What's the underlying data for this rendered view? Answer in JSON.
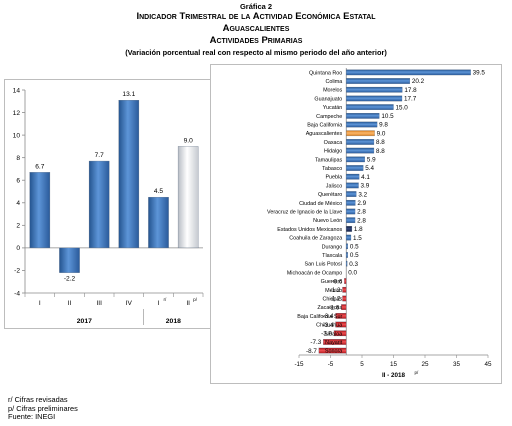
{
  "header": {
    "label": "Gráfica 2",
    "title": "Indicador Trimestral de la Actividad Económica Estatal",
    "state": "Aguascalientes",
    "sector": "Actividades Primarias",
    "subtitle": "(Variación porcentual real con respecto al mismo periodo del año anterior)"
  },
  "colors": {
    "bar_blue": "#3f74bd",
    "bar_white": "#dfe3e8",
    "bar_orange": "#f39c35",
    "bar_red": "#d7262a",
    "bar_navy": "#1d2c55"
  },
  "chart_data": [
    {
      "type": "bar",
      "orientation": "vertical",
      "categories": [
        "I",
        "II",
        "III",
        "IV",
        "I r/",
        "II p/"
      ],
      "category_tick_labels": [
        "I",
        "II",
        "III",
        "IV",
        "I",
        "II"
      ],
      "category_superscripts": [
        "",
        "",
        "",
        "",
        "r/",
        "p/"
      ],
      "values": [
        6.7,
        -2.2,
        7.7,
        13.1,
        4.5,
        9.0
      ],
      "value_labels": [
        "6.7",
        "-2.2",
        "7.7",
        "13.1",
        "4.5",
        "9.0"
      ],
      "bar_colors": [
        "blue",
        "blue",
        "blue",
        "blue",
        "blue",
        "white"
      ],
      "groups": [
        {
          "label": "2017",
          "first": 0,
          "last": 3
        },
        {
          "label": "2018",
          "first": 4,
          "last": 5
        }
      ],
      "ylim": [
        -4,
        14
      ],
      "yticks": [
        -4,
        -2,
        0,
        2,
        4,
        6,
        8,
        10,
        12,
        14
      ],
      "ytick_labels": [
        "-4",
        "-2",
        "0",
        "2",
        "4",
        "6",
        "8",
        "10",
        "12",
        "14"
      ],
      "grid": false
    },
    {
      "type": "bar",
      "orientation": "horizontal",
      "categories": [
        "Quintana Roo",
        "Colima",
        "Morelos",
        "Guanajuato",
        "Yucatán",
        "Campeche",
        "Baja California",
        "Aguascalientes",
        "Oaxaca",
        "Hidalgo",
        "Tamaulipas",
        "Tabasco",
        "Puebla",
        "Jalisco",
        "Querétaro",
        "Ciudad de México",
        "Veracruz de Ignacio de la Llave",
        "Nuevo León",
        "Estados Unidos Mexicanos",
        "Coahuila de Zaragoza",
        "Durango",
        "Tlaxcala",
        "San Luis Potosí",
        "Michoacán de Ocampo",
        "Guerrero",
        "México",
        "Chiapas",
        "Zacatecas",
        "Baja California Sur",
        "Chihuahua",
        "Sinaloa",
        "Nayarit",
        "Sonora"
      ],
      "values": [
        39.5,
        20.2,
        17.8,
        17.7,
        15.0,
        10.5,
        9.8,
        9.0,
        8.8,
        8.8,
        5.9,
        5.4,
        4.1,
        3.9,
        3.2,
        2.9,
        2.8,
        2.8,
        1.8,
        1.5,
        0.5,
        0.5,
        0.3,
        0.0,
        -0.6,
        -1.2,
        -1.2,
        -1.6,
        -3.4,
        -3.4,
        -3.9,
        -7.3,
        -8.7
      ],
      "value_labels": [
        "39.5",
        "20.2",
        "17.8",
        "17.7",
        "15.0",
        "10.5",
        "9.8",
        "9.0",
        "8.8",
        "8.8",
        "5.9",
        "5.4",
        "4.1",
        "3.9",
        "3.2",
        "2.9",
        "2.8",
        "2.8",
        "1.8",
        "1.5",
        "0.5",
        "0.5",
        "0.3",
        "0.0",
        "-0.6",
        "-1.2",
        "-1.2",
        "-1.6",
        "-3.4",
        "-3.4",
        "-3.9",
        "-7.3",
        "-8.7"
      ],
      "bar_colors": [
        "blue",
        "blue",
        "blue",
        "blue",
        "blue",
        "blue",
        "blue",
        "orange",
        "blue",
        "blue",
        "blue",
        "blue",
        "blue",
        "blue",
        "blue",
        "blue",
        "blue",
        "blue",
        "navy",
        "blue",
        "blue",
        "blue",
        "blue",
        "blue",
        "red",
        "red",
        "red",
        "red",
        "red",
        "red",
        "red",
        "red",
        "red"
      ],
      "xlim": [
        -15,
        45
      ],
      "xticks": [
        -15,
        -5,
        5,
        15,
        25,
        35,
        45
      ],
      "xtick_labels": [
        "-15",
        "-5",
        "5",
        "15",
        "25",
        "35",
        "45"
      ],
      "xlabel": "II - 2018",
      "xlabel_superscript": "p/",
      "grid": false
    }
  ],
  "footnotes": [
    "r/ Cifras revisadas",
    "p/ Cifras preliminares",
    "Fuente: INEGI"
  ]
}
